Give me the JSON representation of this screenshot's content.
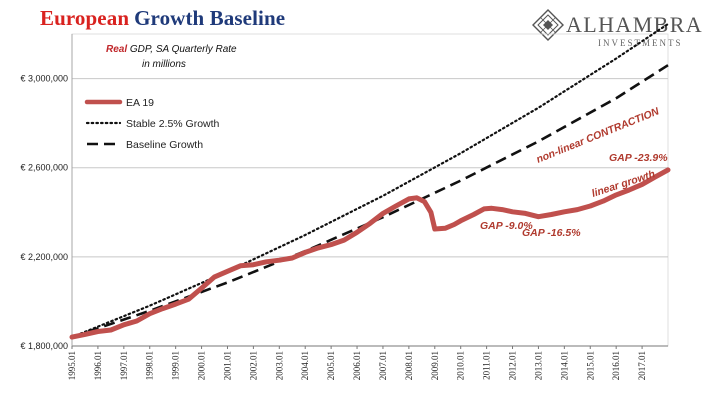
{
  "title_part1": "European",
  "title_part2": "Growth Baseline",
  "subtitle_bold": "Real",
  "subtitle_rest": " GDP, SA Quarterly Rate",
  "subtitle_line2": "in millions",
  "logo": {
    "name": "ALHAMBRA",
    "sub": "INVESTMENTS",
    "icon": "diamond-lattice-logo"
  },
  "colors": {
    "ea19": "#c0504d",
    "title_red": "#d9221f",
    "title_blue": "#1f3a7a",
    "annotation": "#b03a2e",
    "grid": "#c8c8c8"
  },
  "chart_data": {
    "type": "line",
    "xlim": [
      1995.0,
      2018.0
    ],
    "ylim": [
      1800000,
      3200000
    ],
    "grid": "horizontal",
    "legend_position": "top-left",
    "ytick_values": [
      1800000,
      2200000,
      2600000,
      3000000
    ],
    "yticks": [
      "€ 1,800,000",
      "€ 2,200,000",
      "€ 2,600,000",
      "€ 3,000,000"
    ],
    "xtick_values": [
      1995,
      1996,
      1997,
      1998,
      1999,
      2000,
      2001,
      2002,
      2003,
      2004,
      2005,
      2006,
      2007,
      2008,
      2009,
      2010,
      2011,
      2012,
      2013,
      2014,
      2015,
      2016,
      2017
    ],
    "xticks": [
      "1995.01",
      "1996.01",
      "1997.01",
      "1998.01",
      "1999.01",
      "2000.01",
      "2001.01",
      "2002.01",
      "2003.01",
      "2004.01",
      "2005.01",
      "2006.01",
      "2007.01",
      "2008.01",
      "2009.01",
      "2010.01",
      "2011.01",
      "2012.01",
      "2013.01",
      "2014.01",
      "2015.01",
      "2016.01",
      "2017.01"
    ],
    "series": [
      {
        "name": "EA 19",
        "style": "solid-thick",
        "points": [
          [
            1995.0,
            1840000
          ],
          [
            1995.5,
            1852000
          ],
          [
            1996.0,
            1865000
          ],
          [
            1996.5,
            1872000
          ],
          [
            1997.0,
            1895000
          ],
          [
            1997.5,
            1912000
          ],
          [
            1998.0,
            1945000
          ],
          [
            1998.5,
            1968000
          ],
          [
            1999.0,
            1988000
          ],
          [
            1999.5,
            2010000
          ],
          [
            2000.0,
            2060000
          ],
          [
            2000.5,
            2110000
          ],
          [
            2001.0,
            2135000
          ],
          [
            2001.5,
            2160000
          ],
          [
            2002.0,
            2165000
          ],
          [
            2002.5,
            2178000
          ],
          [
            2003.0,
            2185000
          ],
          [
            2003.5,
            2195000
          ],
          [
            2004.0,
            2220000
          ],
          [
            2004.5,
            2240000
          ],
          [
            2005.0,
            2255000
          ],
          [
            2005.5,
            2275000
          ],
          [
            2006.0,
            2310000
          ],
          [
            2006.5,
            2350000
          ],
          [
            2007.0,
            2395000
          ],
          [
            2007.5,
            2428000
          ],
          [
            2008.0,
            2460000
          ],
          [
            2008.3,
            2465000
          ],
          [
            2008.6,
            2448000
          ],
          [
            2008.85,
            2400000
          ],
          [
            2009.0,
            2325000
          ],
          [
            2009.4,
            2328000
          ],
          [
            2009.75,
            2345000
          ],
          [
            2010.0,
            2362000
          ],
          [
            2010.5,
            2390000
          ],
          [
            2010.9,
            2415000
          ],
          [
            2011.2,
            2418000
          ],
          [
            2011.6,
            2412000
          ],
          [
            2012.0,
            2402000
          ],
          [
            2012.5,
            2395000
          ],
          [
            2013.0,
            2380000
          ],
          [
            2013.5,
            2390000
          ],
          [
            2014.0,
            2402000
          ],
          [
            2014.5,
            2412000
          ],
          [
            2015.0,
            2428000
          ],
          [
            2015.5,
            2450000
          ],
          [
            2016.0,
            2478000
          ],
          [
            2016.5,
            2500000
          ],
          [
            2017.0,
            2525000
          ],
          [
            2017.5,
            2558000
          ],
          [
            2018.0,
            2590000
          ]
        ]
      },
      {
        "name": "Stable 2.5% Growth",
        "style": "dotted",
        "points": [
          [
            1995.0,
            1840000
          ],
          [
            1998.0,
            1981000
          ],
          [
            2001.0,
            2134000
          ],
          [
            2004.0,
            2298000
          ],
          [
            2007.0,
            2474000
          ],
          [
            2010.0,
            2665000
          ],
          [
            2013.0,
            2869000
          ],
          [
            2016.0,
            3090000
          ],
          [
            2018.0,
            3245000
          ]
        ]
      },
      {
        "name": "Baseline Growth",
        "style": "dashed",
        "points": [
          [
            1995.0,
            1840000
          ],
          [
            1998.0,
            1958000
          ],
          [
            2001.0,
            2085000
          ],
          [
            2004.0,
            2226000
          ],
          [
            2007.0,
            2378000
          ],
          [
            2010.0,
            2542000
          ],
          [
            2013.0,
            2718000
          ],
          [
            2016.0,
            2912000
          ],
          [
            2018.0,
            3060000
          ]
        ]
      }
    ],
    "annotations": [
      {
        "text": "non-linear CONTRACTION",
        "rotate": -22
      },
      {
        "text": "GAP -23.9%",
        "rotate": 0
      },
      {
        "text": "linear growth",
        "rotate": -18
      },
      {
        "text": "GAP -9.0%",
        "rotate": 0
      },
      {
        "text": "GAP -16.5%",
        "rotate": 0
      }
    ]
  }
}
